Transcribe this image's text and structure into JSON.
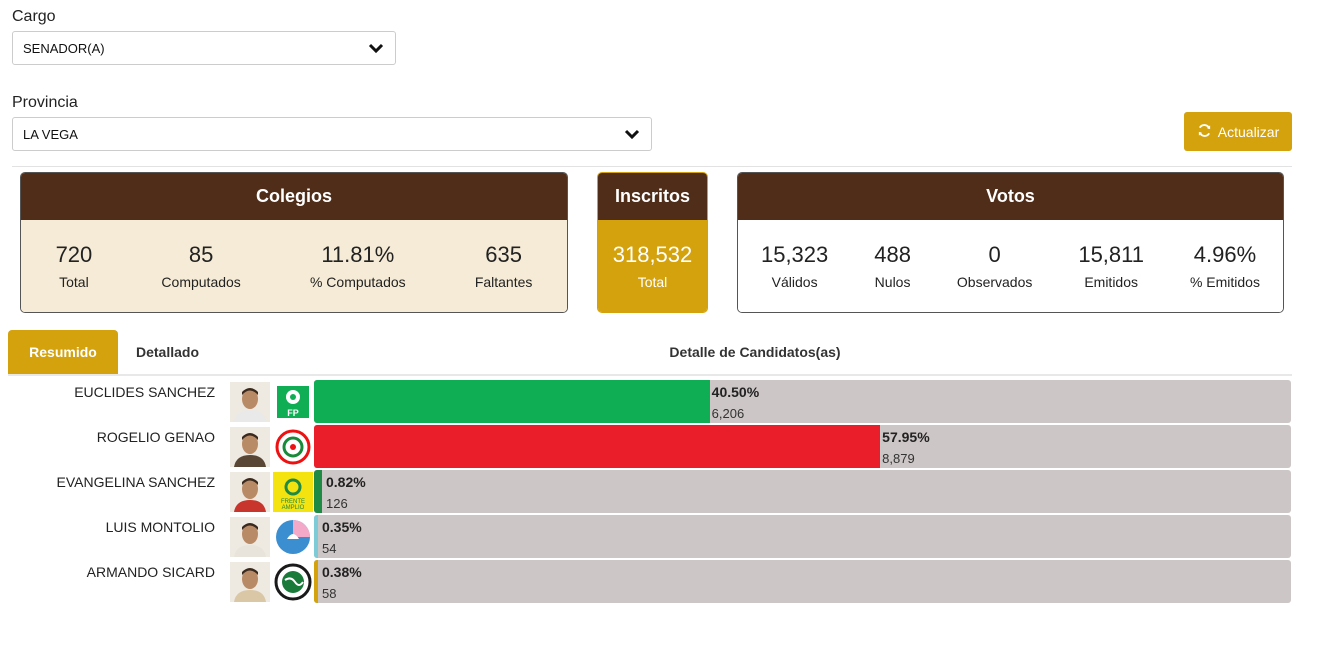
{
  "filters": {
    "cargo_label": "Cargo",
    "cargo_value": "SENADOR(A)",
    "provincia_label": "Provincia",
    "provincia_value": "LA VEGA",
    "refresh_label": "Actualizar"
  },
  "colegios": {
    "title": "Colegios",
    "stats": [
      {
        "value": "720",
        "label": "Total"
      },
      {
        "value": "85",
        "label": "Computados"
      },
      {
        "value": "11.81%",
        "label": "% Computados"
      },
      {
        "value": "635",
        "label": "Faltantes"
      }
    ]
  },
  "inscritos": {
    "title": "Inscritos",
    "value": "318,532",
    "label": "Total"
  },
  "votos": {
    "title": "Votos",
    "stats": [
      {
        "value": "15,323",
        "label": "Válidos"
      },
      {
        "value": "488",
        "label": "Nulos"
      },
      {
        "value": "0",
        "label": "Observados"
      },
      {
        "value": "15,811",
        "label": "Emitidos"
      },
      {
        "value": "4.96%",
        "label": "% Emitidos"
      }
    ]
  },
  "tabs": {
    "resumido": "Resumido",
    "detallado": "Detallado"
  },
  "detail_title": "Detalle de Candidatos(as)",
  "colors": {
    "brown": "#4f2d19",
    "gold": "#d4a20c",
    "cream": "#f6ebd6",
    "track": "#cdc6c6"
  },
  "candidates": [
    {
      "name": "EUCLIDES SANCHEZ",
      "pct_text": "40.50%",
      "pct": 40.5,
      "votes": "6,206",
      "color": "#0fae55",
      "logo": "fp-party-logo",
      "logo_text": "FP"
    },
    {
      "name": "ROGELIO GENAO",
      "pct_text": "57.95%",
      "pct": 57.95,
      "votes": "8,879",
      "color": "#ea1d2a",
      "logo": "prsc-party-logo",
      "logo_text": ""
    },
    {
      "name": "EVANGELINA SANCHEZ",
      "pct_text": "0.82%",
      "pct": 0.82,
      "votes": "126",
      "color": "#1e8a44",
      "logo": "frente-amplio-logo",
      "logo_text": "FRENTE AMPLIO"
    },
    {
      "name": "LUIS MONTOLIO",
      "pct_text": "0.35%",
      "pct": 0.35,
      "votes": "54",
      "color": "#7ecbd8",
      "logo": "party-logo-blue-pink",
      "logo_text": ""
    },
    {
      "name": "ARMANDO SICARD",
      "pct_text": "0.38%",
      "pct": 0.38,
      "votes": "58",
      "color": "#d4a20c",
      "logo": "party-logo-green-globe",
      "logo_text": ""
    }
  ]
}
